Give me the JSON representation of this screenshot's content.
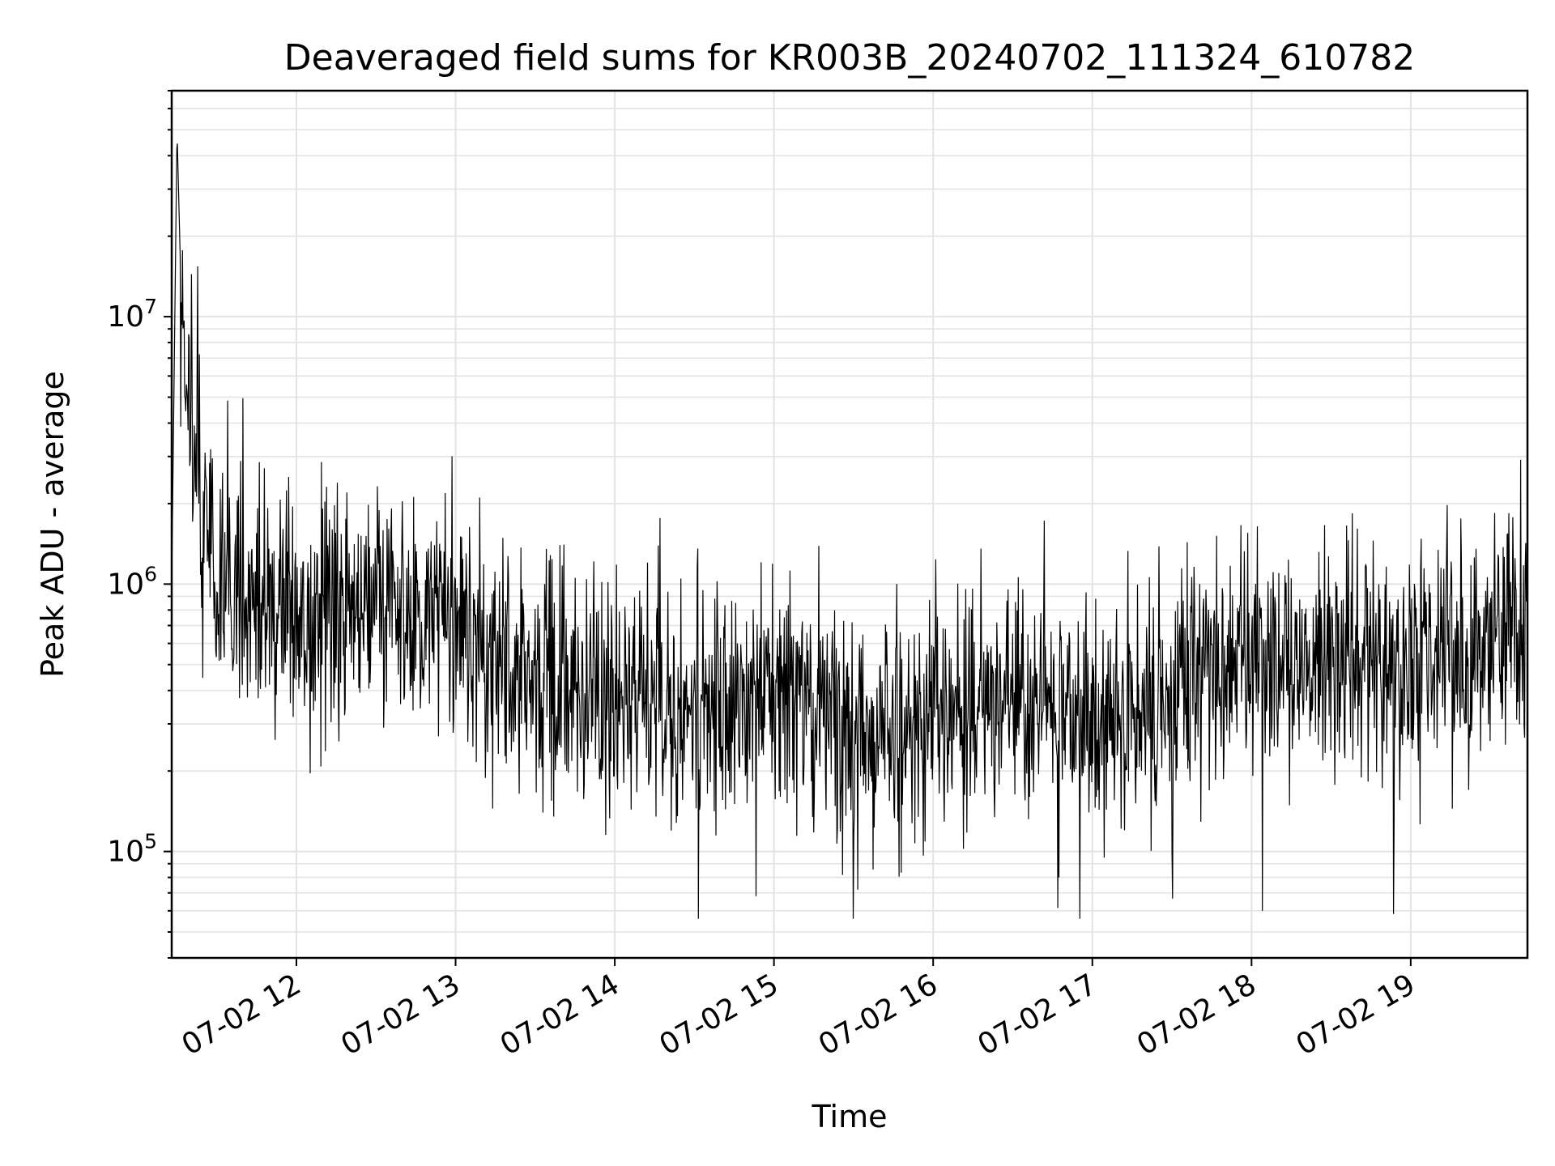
{
  "chart_data": {
    "type": "line",
    "title": "Deaveraged field sums for KR003B_20240702_111324_610782",
    "xlabel": "Time",
    "ylabel": "Peak ADU - average",
    "y_scale": "log",
    "ylim": [
      40000,
      70000000
    ],
    "xlim": [
      "07-02 11:13",
      "07-02 19:44"
    ],
    "grid": true,
    "line_color": "#000000",
    "x_ticks": [
      "07-02 12",
      "07-02 13",
      "07-02 14",
      "07-02 15",
      "07-02 16",
      "07-02 17",
      "07-02 18",
      "07-02 19"
    ],
    "y_ticks": [
      {
        "base": "10",
        "exp": "5",
        "value": 100000
      },
      {
        "base": "10",
        "exp": "6",
        "value": 1000000
      },
      {
        "base": "10",
        "exp": "7",
        "value": 10000000
      }
    ],
    "series": [
      {
        "values_note": "approximate per-half-hour envelope of a dense noisy trace",
        "x": [
          "07-02 11:13",
          "07-02 11:15",
          "07-02 11:17",
          "07-02 11:30",
          "07-02 12:00",
          "07-02 12:30",
          "07-02 13:00",
          "07-02 13:30",
          "07-02 14:00",
          "07-02 14:30",
          "07-02 15:00",
          "07-02 15:30",
          "07-02 16:00",
          "07-02 16:30",
          "07-02 17:00",
          "07-02 17:30",
          "07-02 18:00",
          "07-02 18:30",
          "07-02 19:00",
          "07-02 19:30",
          "07-02 19:44"
        ],
        "y": [
          1000000,
          50000000,
          8000000,
          900000,
          800000,
          900000,
          700000,
          500000,
          400000,
          350000,
          400000,
          300000,
          300000,
          400000,
          300000,
          400000,
          500000,
          500000,
          500000,
          600000,
          1000000
        ]
      }
    ]
  }
}
